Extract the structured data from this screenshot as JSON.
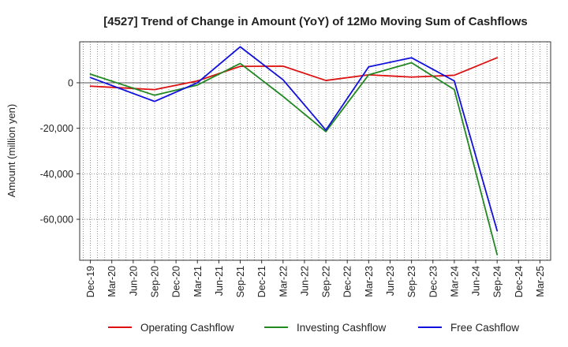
{
  "chart_data": {
    "type": "line",
    "title": "[4527]  Trend of Change in Amount (YoY) of 12Mo Moving Sum of Cashflows",
    "xlabel": "",
    "ylabel": "Amount (million yen)",
    "categories": [
      "Dec-19",
      "Mar-20",
      "Jun-20",
      "Sep-20",
      "Dec-20",
      "Mar-21",
      "Jun-21",
      "Sep-21",
      "Dec-21",
      "Mar-22",
      "Jun-22",
      "Sep-22",
      "Dec-22",
      "Mar-23",
      "Jun-23",
      "Sep-23",
      "Dec-23",
      "Mar-24",
      "Jun-24",
      "Sep-24",
      "Dec-24",
      "Mar-25"
    ],
    "ylim": [
      -78000,
      18000
    ],
    "yticks": [
      0,
      -20000,
      -40000,
      -60000
    ],
    "ytick_labels": [
      "0",
      "-20,000",
      "-40,000",
      "-60,000"
    ],
    "grid": true,
    "legend_position": "bottom",
    "series": [
      {
        "name": "Operating Cashflow",
        "color": "#dd1111",
        "values": [
          -1500,
          null,
          null,
          -3000,
          null,
          800,
          null,
          7200,
          null,
          7300,
          null,
          1000,
          null,
          3500,
          null,
          2500,
          null,
          3300,
          null,
          11000,
          null,
          null
        ]
      },
      {
        "name": "Investing Cashflow",
        "color": "#228822",
        "values": [
          3800,
          null,
          null,
          -5500,
          null,
          -1000,
          null,
          8500,
          null,
          -6000,
          null,
          -21500,
          null,
          3500,
          null,
          8800,
          null,
          -3000,
          null,
          -75500,
          null,
          null
        ]
      },
      {
        "name": "Free Cashflow",
        "color": "#1111dd",
        "values": [
          2300,
          null,
          null,
          -8200,
          null,
          0,
          null,
          15800,
          null,
          1300,
          null,
          -20800,
          null,
          7000,
          null,
          11000,
          null,
          800,
          null,
          -65000,
          null,
          null
        ]
      }
    ]
  }
}
